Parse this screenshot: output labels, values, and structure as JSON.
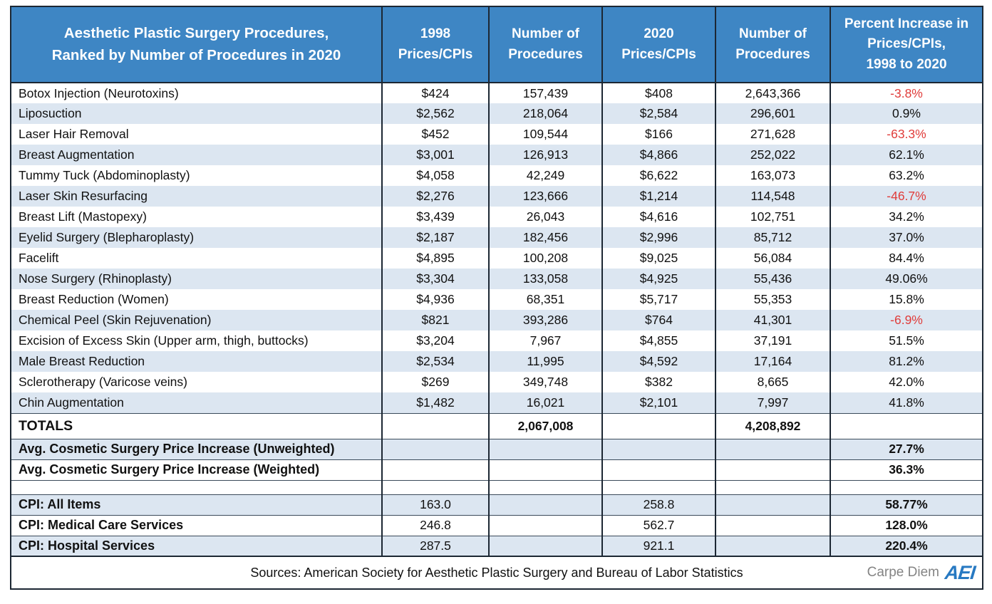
{
  "colors": {
    "header_bg": "#3e86c4",
    "stripe_bg": "#dce6f1",
    "negative_text": "#e03c3a",
    "border": "#1c2733",
    "logo_blue": "#2779c2",
    "brand_gray": "#848484"
  },
  "table": {
    "header": {
      "col0": [
        "Aesthetic Plastic Surgery Procedures,",
        "Ranked by Number of Procedures in 2020"
      ],
      "col1": [
        "1998",
        "Prices/CPIs"
      ],
      "col2": [
        "Number of",
        "Procedures"
      ],
      "col3": [
        "2020",
        "Prices/CPIs"
      ],
      "col4": [
        "Number of",
        "Procedures"
      ],
      "col5": [
        "Percent Increase in",
        "Prices/CPIs,",
        "1998 to 2020"
      ]
    },
    "rows": [
      {
        "procedure": "Botox Injection (Neurotoxins)",
        "price_1998": "$424",
        "procedures_1998": "157,439",
        "price_2020": "$408",
        "procedures_2020": "2,643,366",
        "percent_change": "-3.8%",
        "negative": true
      },
      {
        "procedure": "Liposuction",
        "price_1998": "$2,562",
        "procedures_1998": "218,064",
        "price_2020": "$2,584",
        "procedures_2020": "296,601",
        "percent_change": "0.9%",
        "negative": false
      },
      {
        "procedure": "Laser Hair Removal",
        "price_1998": "$452",
        "procedures_1998": "109,544",
        "price_2020": "$166",
        "procedures_2020": "271,628",
        "percent_change": "-63.3%",
        "negative": true
      },
      {
        "procedure": "Breast Augmentation",
        "price_1998": "$3,001",
        "procedures_1998": "126,913",
        "price_2020": "$4,866",
        "procedures_2020": "252,022",
        "percent_change": "62.1%",
        "negative": false
      },
      {
        "procedure": "Tummy Tuck (Abdominoplasty)",
        "price_1998": "$4,058",
        "procedures_1998": "42,249",
        "price_2020": "$6,622",
        "procedures_2020": "163,073",
        "percent_change": "63.2%",
        "negative": false
      },
      {
        "procedure": "Laser Skin Resurfacing",
        "price_1998": "$2,276",
        "procedures_1998": "123,666",
        "price_2020": "$1,214",
        "procedures_2020": "114,548",
        "percent_change": "-46.7%",
        "negative": true
      },
      {
        "procedure": "Breast Lift (Mastopexy)",
        "price_1998": "$3,439",
        "procedures_1998": "26,043",
        "price_2020": "$4,616",
        "procedures_2020": "102,751",
        "percent_change": "34.2%",
        "negative": false
      },
      {
        "procedure": "Eyelid Surgery (Blepharoplasty)",
        "price_1998": "$2,187",
        "procedures_1998": "182,456",
        "price_2020": "$2,996",
        "procedures_2020": "85,712",
        "percent_change": "37.0%",
        "negative": false
      },
      {
        "procedure": "Facelift",
        "price_1998": "$4,895",
        "procedures_1998": "100,208",
        "price_2020": "$9,025",
        "procedures_2020": "56,084",
        "percent_change": "84.4%",
        "negative": false
      },
      {
        "procedure": "Nose Surgery (Rhinoplasty)",
        "price_1998": "$3,304",
        "procedures_1998": "133,058",
        "price_2020": "$4,925",
        "procedures_2020": "55,436",
        "percent_change": "49.06%",
        "negative": false
      },
      {
        "procedure": "Breast Reduction (Women)",
        "price_1998": "$4,936",
        "procedures_1998": "68,351",
        "price_2020": "$5,717",
        "procedures_2020": "55,353",
        "percent_change": "15.8%",
        "negative": false
      },
      {
        "procedure": "Chemical Peel (Skin Rejuvenation)",
        "price_1998": "$821",
        "procedures_1998": "393,286",
        "price_2020": "$764",
        "procedures_2020": "41,301",
        "percent_change": "-6.9%",
        "negative": true
      },
      {
        "procedure": "Excision of Excess Skin (Upper arm, thigh, buttocks)",
        "price_1998": "$3,204",
        "procedures_1998": "7,967",
        "price_2020": "$4,855",
        "procedures_2020": "37,191",
        "percent_change": "51.5%",
        "negative": false
      },
      {
        "procedure": "Male Breast Reduction",
        "price_1998": "$2,534",
        "procedures_1998": "11,995",
        "price_2020": "$4,592",
        "procedures_2020": "17,164",
        "percent_change": "81.2%",
        "negative": false
      },
      {
        "procedure": "Sclerotherapy (Varicose veins)",
        "price_1998": "$269",
        "procedures_1998": "349,748",
        "price_2020": "$382",
        "procedures_2020": "8,665",
        "percent_change": "42.0%",
        "negative": false
      },
      {
        "procedure": "Chin Augmentation",
        "price_1998": "$1,482",
        "procedures_1998": "16,021",
        "price_2020": "$2,101",
        "procedures_2020": "7,997",
        "percent_change": "41.8%",
        "negative": false
      }
    ],
    "totals": {
      "label": "TOTALS",
      "procedures_1998": "2,067,008",
      "procedures_2020": "4,208,892"
    },
    "avg_rows": [
      {
        "label": "Avg. Cosmetic Surgery Price Increase (Unweighted)",
        "value": "27.7%"
      },
      {
        "label": "Avg. Cosmetic Surgery Price Increase (Weighted)",
        "value": "36.3%"
      }
    ],
    "cpi_rows": [
      {
        "label": "CPI: All Items",
        "cpi_1998": "163.0",
        "cpi_2020": "258.8",
        "percent_change": "58.77%"
      },
      {
        "label": "CPI: Medical Care Services",
        "cpi_1998": "246.8",
        "cpi_2020": "562.7",
        "percent_change": "128.0%"
      },
      {
        "label": "CPI: Hospital Services",
        "cpi_1998": "287.5",
        "cpi_2020": "921.1",
        "percent_change": "220.4%"
      }
    ],
    "footer": {
      "sources": "Sources: American Society for Aesthetic Plastic Surgery and Bureau of Labor Statistics",
      "brand": "Carpe Diem",
      "logo": "AEI"
    }
  },
  "chart_data": {
    "type": "table",
    "title": "Aesthetic Plastic Surgery Procedures, Ranked by Number of Procedures in 2020",
    "columns": [
      "Procedure",
      "1998 Prices/CPIs",
      "Number of Procedures (1998)",
      "2020 Prices/CPIs",
      "Number of Procedures (2020)",
      "Percent Increase in Prices/CPIs, 1998 to 2020"
    ],
    "rows": [
      [
        "Botox Injection (Neurotoxins)",
        424,
        157439,
        408,
        2643366,
        -3.8
      ],
      [
        "Liposuction",
        2562,
        218064,
        2584,
        296601,
        0.9
      ],
      [
        "Laser Hair Removal",
        452,
        109544,
        166,
        271628,
        -63.3
      ],
      [
        "Breast Augmentation",
        3001,
        126913,
        4866,
        252022,
        62.1
      ],
      [
        "Tummy Tuck (Abdominoplasty)",
        4058,
        42249,
        6622,
        163073,
        63.2
      ],
      [
        "Laser Skin Resurfacing",
        2276,
        123666,
        1214,
        114548,
        -46.7
      ],
      [
        "Breast Lift (Mastopexy)",
        3439,
        26043,
        4616,
        102751,
        34.2
      ],
      [
        "Eyelid Surgery (Blepharoplasty)",
        2187,
        182456,
        2996,
        85712,
        37.0
      ],
      [
        "Facelift",
        4895,
        100208,
        9025,
        56084,
        84.4
      ],
      [
        "Nose Surgery (Rhinoplasty)",
        3304,
        133058,
        4925,
        55436,
        49.06
      ],
      [
        "Breast Reduction (Women)",
        4936,
        68351,
        5717,
        55353,
        15.8
      ],
      [
        "Chemical Peel (Skin Rejuvenation)",
        821,
        393286,
        764,
        41301,
        -6.9
      ],
      [
        "Excision of Excess Skin (Upper arm, thigh, buttocks)",
        3204,
        7967,
        4855,
        37191,
        51.5
      ],
      [
        "Male Breast Reduction",
        2534,
        11995,
        4592,
        17164,
        81.2
      ],
      [
        "Sclerotherapy (Varicose veins)",
        269,
        349748,
        382,
        8665,
        42.0
      ],
      [
        "Chin Augmentation",
        1482,
        16021,
        2101,
        7997,
        41.8
      ]
    ],
    "totals": {
      "procedures_1998": 2067008,
      "procedures_2020": 4208892
    },
    "averages": {
      "unweighted_price_increase_pct": 27.7,
      "weighted_price_increase_pct": 36.3
    },
    "cpi": [
      {
        "name": "CPI: All Items",
        "cpi_1998": 163.0,
        "cpi_2020": 258.8,
        "percent_increase": 58.77
      },
      {
        "name": "CPI: Medical Care Services",
        "cpi_1998": 246.8,
        "cpi_2020": 562.7,
        "percent_increase": 128.0
      },
      {
        "name": "CPI: Hospital Services",
        "cpi_1998": 287.5,
        "cpi_2020": 921.1,
        "percent_increase": 220.4
      }
    ],
    "notes": "Negative percent changes shown in red. Sources: American Society for Aesthetic Plastic Surgery and Bureau of Labor Statistics."
  }
}
